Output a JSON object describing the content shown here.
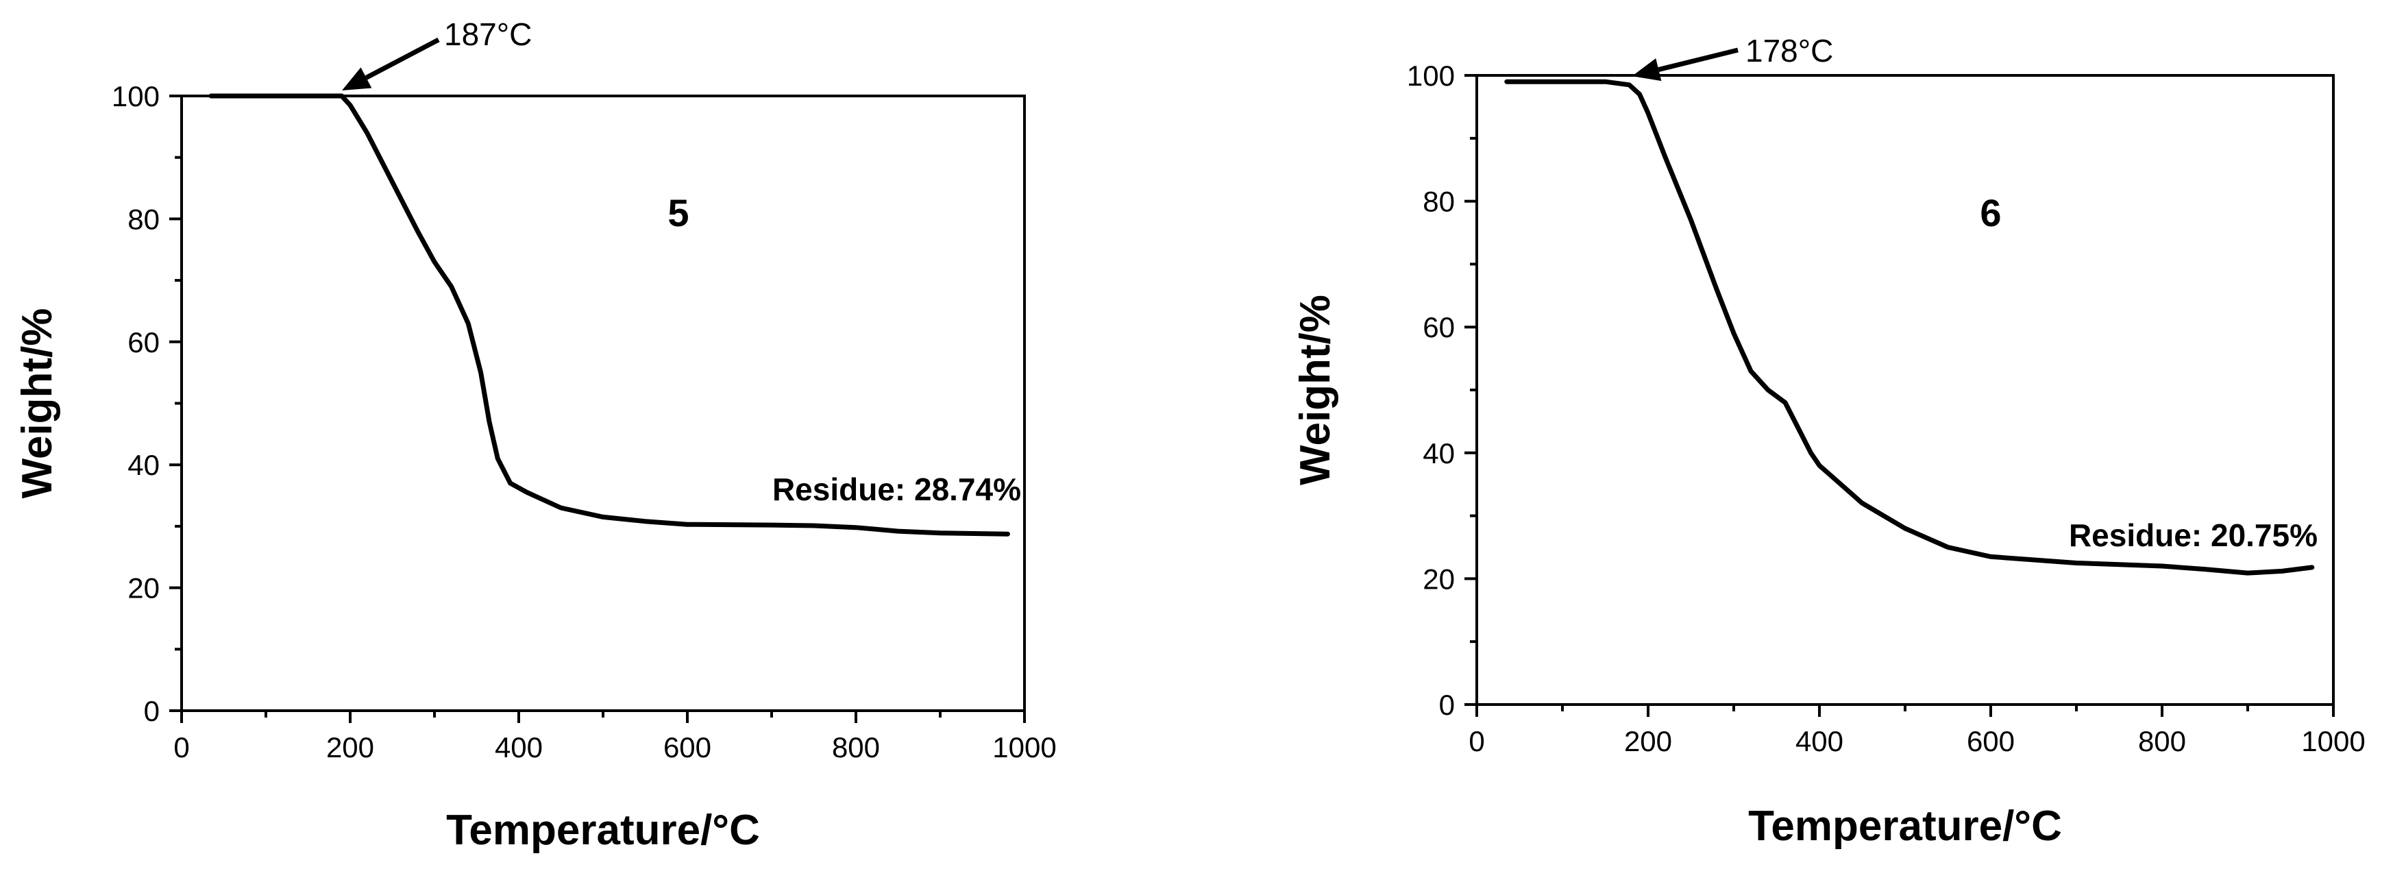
{
  "chart_data": [
    {
      "type": "line",
      "panel_label": "5",
      "xlabel": "Temperature/°C",
      "ylabel": "Weight/%",
      "xlim": [
        0,
        1000
      ],
      "ylim": [
        0,
        100
      ],
      "xticks": [
        0,
        200,
        400,
        600,
        800,
        1000
      ],
      "yticks": [
        0,
        20,
        40,
        60,
        80,
        100
      ],
      "grid": false,
      "x": [
        35,
        100,
        150,
        180,
        190,
        200,
        220,
        250,
        280,
        300,
        320,
        340,
        355,
        365,
        375,
        390,
        410,
        450,
        500,
        550,
        600,
        700,
        750,
        800,
        850,
        900,
        980
      ],
      "y": [
        100,
        100,
        100,
        100,
        100,
        98.5,
        94,
        86,
        78,
        73,
        69,
        63,
        55,
        47,
        41,
        37,
        35.5,
        33,
        31.5,
        30.8,
        30.3,
        30.2,
        30.1,
        29.8,
        29.2,
        28.9,
        28.74
      ],
      "annotations": {
        "onset": {
          "text": "187°C",
          "x": 187,
          "y": 100
        },
        "residue": {
          "text": "Residue: 28.74%"
        }
      }
    },
    {
      "type": "line",
      "panel_label": "6",
      "xlabel": "Temperature/°C",
      "ylabel": "Weight/%",
      "xlim": [
        0,
        1000
      ],
      "ylim": [
        0,
        100
      ],
      "xticks": [
        0,
        200,
        400,
        600,
        800,
        1000
      ],
      "yticks": [
        0,
        20,
        40,
        60,
        80,
        100
      ],
      "grid": false,
      "x": [
        35,
        100,
        150,
        178,
        190,
        200,
        220,
        250,
        280,
        300,
        320,
        340,
        360,
        375,
        390,
        400,
        450,
        500,
        550,
        600,
        700,
        800,
        850,
        900,
        940,
        975
      ],
      "y": [
        99,
        99,
        99,
        98.5,
        97,
        94,
        87,
        77,
        66,
        59,
        53,
        50,
        48,
        44,
        40,
        38,
        32,
        28,
        25,
        23.5,
        22.5,
        22,
        21.5,
        20.9,
        21.2,
        21.8
      ],
      "annotations": {
        "onset": {
          "text": "178°C",
          "x": 178,
          "y": 99
        },
        "residue": {
          "text": "Residue: 20.75%"
        }
      }
    }
  ]
}
